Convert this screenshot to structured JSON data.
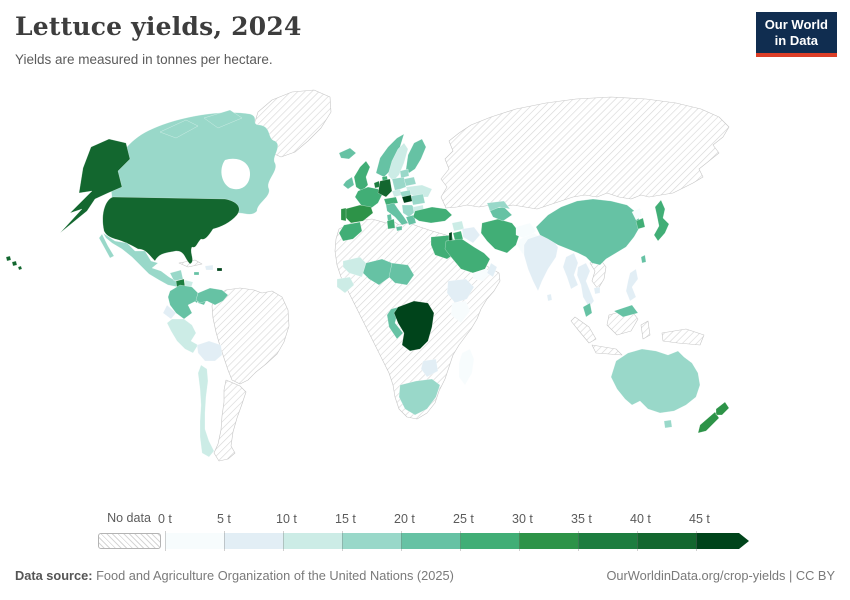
{
  "header": {
    "title": "Lettuce yields, 2024",
    "subtitle": "Yields are measured in tonnes per hectare.",
    "logo": {
      "line1": "Our World",
      "line2": "in Data"
    }
  },
  "footer": {
    "source_label": "Data source:",
    "source_text": " Food and Agriculture Organization of the United Nations (2025)",
    "rights": "OurWorldinData.org/crop-yields | CC BY"
  },
  "chart_data": {
    "type": "choropleth-map",
    "title": "Lettuce yields, 2024",
    "unit": "tonnes per hectare",
    "year": 2024,
    "legend": {
      "no_data_label": "No data",
      "tick_labels": [
        "0 t",
        "5 t",
        "10 t",
        "15 t",
        "20 t",
        "25 t",
        "30 t",
        "35 t",
        "40 t",
        "45 t"
      ],
      "bins": [
        {
          "range": "0-5 t",
          "color": "#f7fcfd"
        },
        {
          "range": "5-10 t",
          "color": "#e2eef5"
        },
        {
          "range": "10-15 t",
          "color": "#ccece6"
        },
        {
          "range": "15-20 t",
          "color": "#99d8c9"
        },
        {
          "range": "20-25 t",
          "color": "#66c2a4"
        },
        {
          "range": "25-30 t",
          "color": "#41ae76"
        },
        {
          "range": "30-35 t",
          "color": "#2d9348"
        },
        {
          "range": "35-40 t",
          "color": "#1d7d3f"
        },
        {
          "range": "40-45 t",
          "color": "#13672f"
        },
        {
          "range": "45+ t",
          "color": "#00441b"
        }
      ],
      "no_data_pattern": {
        "line_color": "#d6d6d6",
        "bg": "#ffffff"
      }
    },
    "countries": [
      {
        "key": "united-states",
        "name": "United States",
        "bin": 8
      },
      {
        "key": "alaska",
        "name": "United States (Alaska)",
        "bin": 8
      },
      {
        "key": "hawaii",
        "name": "United States (Hawaii)",
        "bin": 8
      },
      {
        "key": "canada",
        "name": "Canada",
        "bin": 3
      },
      {
        "key": "canadian-arctic-islands",
        "name": "Canada (Arctic islands)",
        "bin": 3
      },
      {
        "key": "greenland",
        "name": "Greenland",
        "bin": -1
      },
      {
        "key": "mexico",
        "name": "Mexico",
        "bin": 3
      },
      {
        "key": "guatemala",
        "name": "Guatemala",
        "bin": 7
      },
      {
        "key": "honduras",
        "name": "Honduras",
        "bin": 2
      },
      {
        "key": "nicaragua",
        "name": "Nicaragua",
        "bin": 0
      },
      {
        "key": "costa-rica",
        "name": "Costa Rica",
        "bin": 4
      },
      {
        "key": "panama",
        "name": "Panama",
        "bin": 4
      },
      {
        "key": "cuba",
        "name": "Cuba",
        "bin": -1
      },
      {
        "key": "dominican-republic",
        "name": "Dominican Republic",
        "bin": 1
      },
      {
        "key": "puerto-rico",
        "name": "Puerto Rico",
        "bin": 9
      },
      {
        "key": "jamaica",
        "name": "Jamaica",
        "bin": 4
      },
      {
        "key": "colombia",
        "name": "Colombia",
        "bin": 4
      },
      {
        "key": "venezuela",
        "name": "Venezuela",
        "bin": 4
      },
      {
        "key": "ecuador",
        "name": "Ecuador",
        "bin": 1
      },
      {
        "key": "peru",
        "name": "Peru",
        "bin": 2
      },
      {
        "key": "bolivia",
        "name": "Bolivia",
        "bin": 1
      },
      {
        "key": "chile",
        "name": "Chile",
        "bin": 2
      },
      {
        "key": "brazil",
        "name": "Brazil",
        "bin": -1
      },
      {
        "key": "argentina",
        "name": "Argentina",
        "bin": -1
      },
      {
        "key": "iceland",
        "name": "Iceland",
        "bin": 4
      },
      {
        "key": "united-kingdom",
        "name": "United Kingdom",
        "bin": 5
      },
      {
        "key": "ireland",
        "name": "Ireland",
        "bin": 4
      },
      {
        "key": "norway",
        "name": "Norway",
        "bin": 4
      },
      {
        "key": "sweden",
        "name": "Sweden",
        "bin": 2
      },
      {
        "key": "finland",
        "name": "Finland",
        "bin": 4
      },
      {
        "key": "denmark",
        "name": "Denmark",
        "bin": 5
      },
      {
        "key": "baltic-states",
        "name": "Baltic states",
        "bin": 3
      },
      {
        "key": "belarus",
        "name": "Belarus",
        "bin": 3
      },
      {
        "key": "poland",
        "name": "Poland",
        "bin": 3
      },
      {
        "key": "germany",
        "name": "Germany",
        "bin": 8
      },
      {
        "key": "benelux",
        "name": "Netherlands & Belgium",
        "bin": 7
      },
      {
        "key": "france",
        "name": "France",
        "bin": 5
      },
      {
        "key": "spain",
        "name": "Spain",
        "bin": 6
      },
      {
        "key": "portugal",
        "name": "Portugal",
        "bin": 6
      },
      {
        "key": "italy",
        "name": "Italy",
        "bin": 4
      },
      {
        "key": "czechia",
        "name": "Czechia",
        "bin": 2
      },
      {
        "key": "austria",
        "name": "Austria & Switzerland",
        "bin": 5
      },
      {
        "key": "slovakia",
        "name": "Slovakia",
        "bin": 3
      },
      {
        "key": "hungary",
        "name": "Hungary",
        "bin": 9
      },
      {
        "key": "romania",
        "name": "Romania",
        "bin": 3
      },
      {
        "key": "ukraine",
        "name": "Ukraine",
        "bin": 2
      },
      {
        "key": "western-balkans",
        "name": "Western Balkans",
        "bin": 3
      },
      {
        "key": "greece",
        "name": "Greece",
        "bin": 4
      },
      {
        "key": "bulgaria",
        "name": "Bulgaria",
        "bin": 2
      },
      {
        "key": "russia-central-asia",
        "name": "Russia, Kazakhstan & Mongolia (no data)",
        "bin": -1
      },
      {
        "key": "africa-no-data-region",
        "name": "Africa (no-data countries)",
        "bin": -1
      },
      {
        "key": "morocco",
        "name": "Morocco",
        "bin": 5
      },
      {
        "key": "tunisia",
        "name": "Tunisia",
        "bin": 5
      },
      {
        "key": "egypt",
        "name": "Egypt",
        "bin": 5
      },
      {
        "key": "mauritania",
        "name": "Mauritania",
        "bin": 2
      },
      {
        "key": "mali",
        "name": "Mali",
        "bin": 4
      },
      {
        "key": "niger",
        "name": "Niger",
        "bin": 4
      },
      {
        "key": "senegal",
        "name": "Senegal & Guinea",
        "bin": 2
      },
      {
        "key": "ethiopia",
        "name": "Ethiopia",
        "bin": 1
      },
      {
        "key": "kenya",
        "name": "Kenya",
        "bin": 0
      },
      {
        "key": "democratic-republic-of-congo",
        "name": "Democratic Republic of Congo",
        "bin": 9
      },
      {
        "key": "congo",
        "name": "Congo",
        "bin": 4
      },
      {
        "key": "zimbabwe",
        "name": "Zimbabwe",
        "bin": 1
      },
      {
        "key": "south-africa",
        "name": "South Africa",
        "bin": 3
      },
      {
        "key": "madagascar",
        "name": "Madagascar",
        "bin": 0
      },
      {
        "key": "turkey",
        "name": "Turkey",
        "bin": 5
      },
      {
        "key": "syria",
        "name": "Syria",
        "bin": 2
      },
      {
        "key": "iraq",
        "name": "Iraq",
        "bin": 1
      },
      {
        "key": "israel",
        "name": "Israel",
        "bin": 9
      },
      {
        "key": "jordan",
        "name": "Jordan",
        "bin": 5
      },
      {
        "key": "saudi-arabia",
        "name": "Saudi Arabia",
        "bin": 5
      },
      {
        "key": "yemen",
        "name": "Yemen",
        "bin": 0
      },
      {
        "key": "oman",
        "name": "Oman",
        "bin": 1
      },
      {
        "key": "iran",
        "name": "Iran",
        "bin": 5
      },
      {
        "key": "turkmenistan",
        "name": "Turkmenistan",
        "bin": 4
      },
      {
        "key": "uzbekistan",
        "name": "Uzbekistan",
        "bin": 3
      },
      {
        "key": "afghanistan",
        "name": "Afghanistan",
        "bin": 0
      },
      {
        "key": "pakistan",
        "name": "Pakistan",
        "bin": 0
      },
      {
        "key": "india",
        "name": "India",
        "bin": 1
      },
      {
        "key": "sri-lanka",
        "name": "Sri Lanka",
        "bin": 1
      },
      {
        "key": "myanmar",
        "name": "Myanmar",
        "bin": 1
      },
      {
        "key": "thailand",
        "name": "Thailand",
        "bin": 1
      },
      {
        "key": "vietnam",
        "name": "Vietnam",
        "bin": -1
      },
      {
        "key": "cambodia",
        "name": "Cambodia",
        "bin": 1
      },
      {
        "key": "malaysia",
        "name": "Malaysia",
        "bin": 4
      },
      {
        "key": "indonesia",
        "name": "Indonesia",
        "bin": -1
      },
      {
        "key": "papua-new-guinea",
        "name": "Papua New Guinea",
        "bin": -1
      },
      {
        "key": "philippines",
        "name": "Philippines",
        "bin": 1
      },
      {
        "key": "china",
        "name": "China",
        "bin": 4
      },
      {
        "key": "north-korea",
        "name": "North Korea",
        "bin": 0
      },
      {
        "key": "south-korea",
        "name": "South Korea",
        "bin": 5
      },
      {
        "key": "japan",
        "name": "Japan",
        "bin": 5
      },
      {
        "key": "taiwan",
        "name": "Taiwan",
        "bin": 4
      },
      {
        "key": "australia",
        "name": "Australia",
        "bin": 3
      },
      {
        "key": "tasmania",
        "name": "Australia (Tasmania)",
        "bin": 3
      },
      {
        "key": "new-zealand",
        "name": "New Zealand",
        "bin": 6
      }
    ]
  }
}
